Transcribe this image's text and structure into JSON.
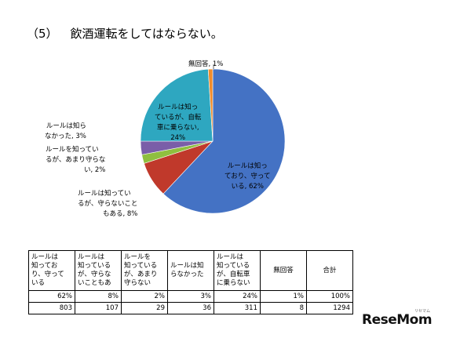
{
  "title": {
    "number": "（5）",
    "text": "飲酒運転をしてはならない。"
  },
  "chart_data": {
    "type": "pie",
    "title": "",
    "slices": [
      {
        "label": "ルールは知っており、守っている",
        "value": 62,
        "display_label": [
          "ルールは知っ",
          "ており、守って",
          "いる, 62%"
        ],
        "color": "#4472c4"
      },
      {
        "label": "ルールは知っているが、守らないこともある",
        "value": 8,
        "display_label": [
          "ルールは知ってい",
          "るが、守らないこと",
          "もある, 8%"
        ],
        "color": "#c0392b"
      },
      {
        "label": "ルールを知っているが、あまり守らない",
        "value": 2,
        "display_label": [
          "ルールを知ってい",
          "るが、あまり守らな",
          "い, 2%"
        ],
        "color": "#8fbf3f"
      },
      {
        "label": "ルールは知らなかった",
        "value": 3,
        "display_label": [
          "ルールは知ら",
          "なかった, 3%"
        ],
        "color": "#7a5ea8"
      },
      {
        "label": "ルールは知っているが、自転車に乗らない",
        "value": 24,
        "display_label": [
          "ルールは知っ",
          "ているが、自転",
          "車に乗らない,",
          "24%"
        ],
        "color": "#2ea7c0"
      },
      {
        "label": "無回答",
        "value": 1,
        "display_label": [
          "無回答, 1%"
        ],
        "color": "#f08c2c"
      }
    ]
  },
  "table": {
    "headers": [
      [
        "ルールは",
        "知ってお",
        "り、守って",
        "いる"
      ],
      [
        "ルールは",
        "知っている",
        "が、守らな",
        "いこともあ"
      ],
      [
        "ルールを",
        "知っている",
        "が、あまり",
        "守らない"
      ],
      [
        "ルールは知",
        "らなかった"
      ],
      [
        "ルールは",
        "知っている",
        "が、自転車",
        "に乗らない"
      ],
      [
        "無回答"
      ],
      [
        "合計"
      ]
    ],
    "percent_row": [
      "62%",
      "8%",
      "2%",
      "3%",
      "24%",
      "1%",
      "100%"
    ],
    "count_row": [
      "803",
      "107",
      "29",
      "36",
      "311",
      "8",
      "1294"
    ]
  },
  "logo": {
    "text_main": "ReseMom",
    "text_sub": "リセマム"
  }
}
